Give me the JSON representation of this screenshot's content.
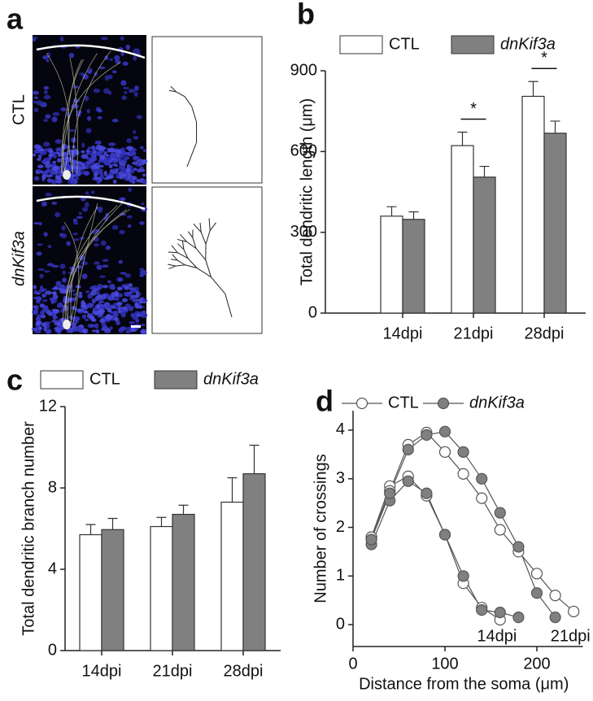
{
  "panel_a": {
    "label": "a",
    "rows": [
      "CTL",
      "dnKif3a"
    ]
  },
  "chart_data": [
    {
      "type": "bar",
      "panel": "b",
      "categories": [
        "14dpi",
        "21dpi",
        "28dpi"
      ],
      "series": [
        {
          "name": "CTL",
          "color": "#ffffff",
          "values": [
            360,
            622,
            805
          ],
          "errors": [
            35,
            50,
            55
          ]
        },
        {
          "name": "dnKif3a",
          "color": "#808080",
          "values": [
            348,
            505,
            668
          ],
          "errors": [
            28,
            40,
            45
          ]
        }
      ],
      "significance": [
        null,
        "*",
        "*"
      ],
      "y_label": "Total dendritic length (μm)",
      "ylim": [
        0,
        900
      ],
      "yticks": [
        0,
        300,
        600,
        900
      ]
    },
    {
      "type": "bar",
      "panel": "c",
      "categories": [
        "14dpi",
        "21dpi",
        "28dpi"
      ],
      "series": [
        {
          "name": "CTL",
          "color": "#ffffff",
          "values": [
            5.7,
            6.1,
            7.3
          ],
          "errors": [
            0.5,
            0.45,
            1.2
          ]
        },
        {
          "name": "dnKif3a",
          "color": "#808080",
          "values": [
            5.95,
            6.7,
            8.7
          ],
          "errors": [
            0.55,
            0.45,
            1.4
          ]
        }
      ],
      "y_label": "Total dendritic branch number",
      "ylim": [
        0,
        12
      ],
      "yticks": [
        0,
        4,
        8,
        12
      ]
    },
    {
      "type": "line",
      "panel": "d",
      "x_label": "Distance from the soma (μm)",
      "y_label": "Number of crossings",
      "xlim": [
        0,
        250
      ],
      "xticks": [
        0,
        100,
        200
      ],
      "ylim": [
        -0.45,
        4.4
      ],
      "yticks": [
        0,
        1,
        2,
        3,
        4
      ],
      "annotations": [
        "14dpi",
        "21dpi"
      ],
      "series": [
        {
          "name": "CTL",
          "color": "#ffffff",
          "x": [
            20,
            40,
            60,
            80,
            100,
            120,
            140,
            160
          ],
          "values": [
            1.8,
            2.85,
            3.05,
            2.65,
            1.85,
            0.85,
            0.35,
            0.1
          ]
        },
        {
          "name": "dnKif3a",
          "color": "#808080",
          "x": [
            20,
            40,
            60,
            80,
            100,
            120,
            140,
            160,
            180
          ],
          "values": [
            1.65,
            2.55,
            2.95,
            2.7,
            1.85,
            1.0,
            0.3,
            0.25,
            0.15
          ]
        },
        {
          "name": "CTL",
          "color": "#ffffff",
          "x": [
            20,
            40,
            60,
            80,
            100,
            120,
            140,
            160,
            180,
            200,
            220,
            240
          ],
          "values": [
            1.8,
            2.75,
            3.7,
            3.95,
            3.55,
            3.1,
            2.6,
            1.95,
            1.5,
            1.05,
            0.6,
            0.27
          ]
        },
        {
          "name": "dnKif3a",
          "color": "#808080",
          "x": [
            20,
            40,
            60,
            80,
            100,
            120,
            140,
            160,
            180,
            200,
            220
          ],
          "values": [
            1.75,
            2.7,
            3.6,
            3.9,
            3.97,
            3.55,
            3.0,
            2.3,
            1.6,
            0.65,
            0.15
          ]
        }
      ]
    }
  ]
}
